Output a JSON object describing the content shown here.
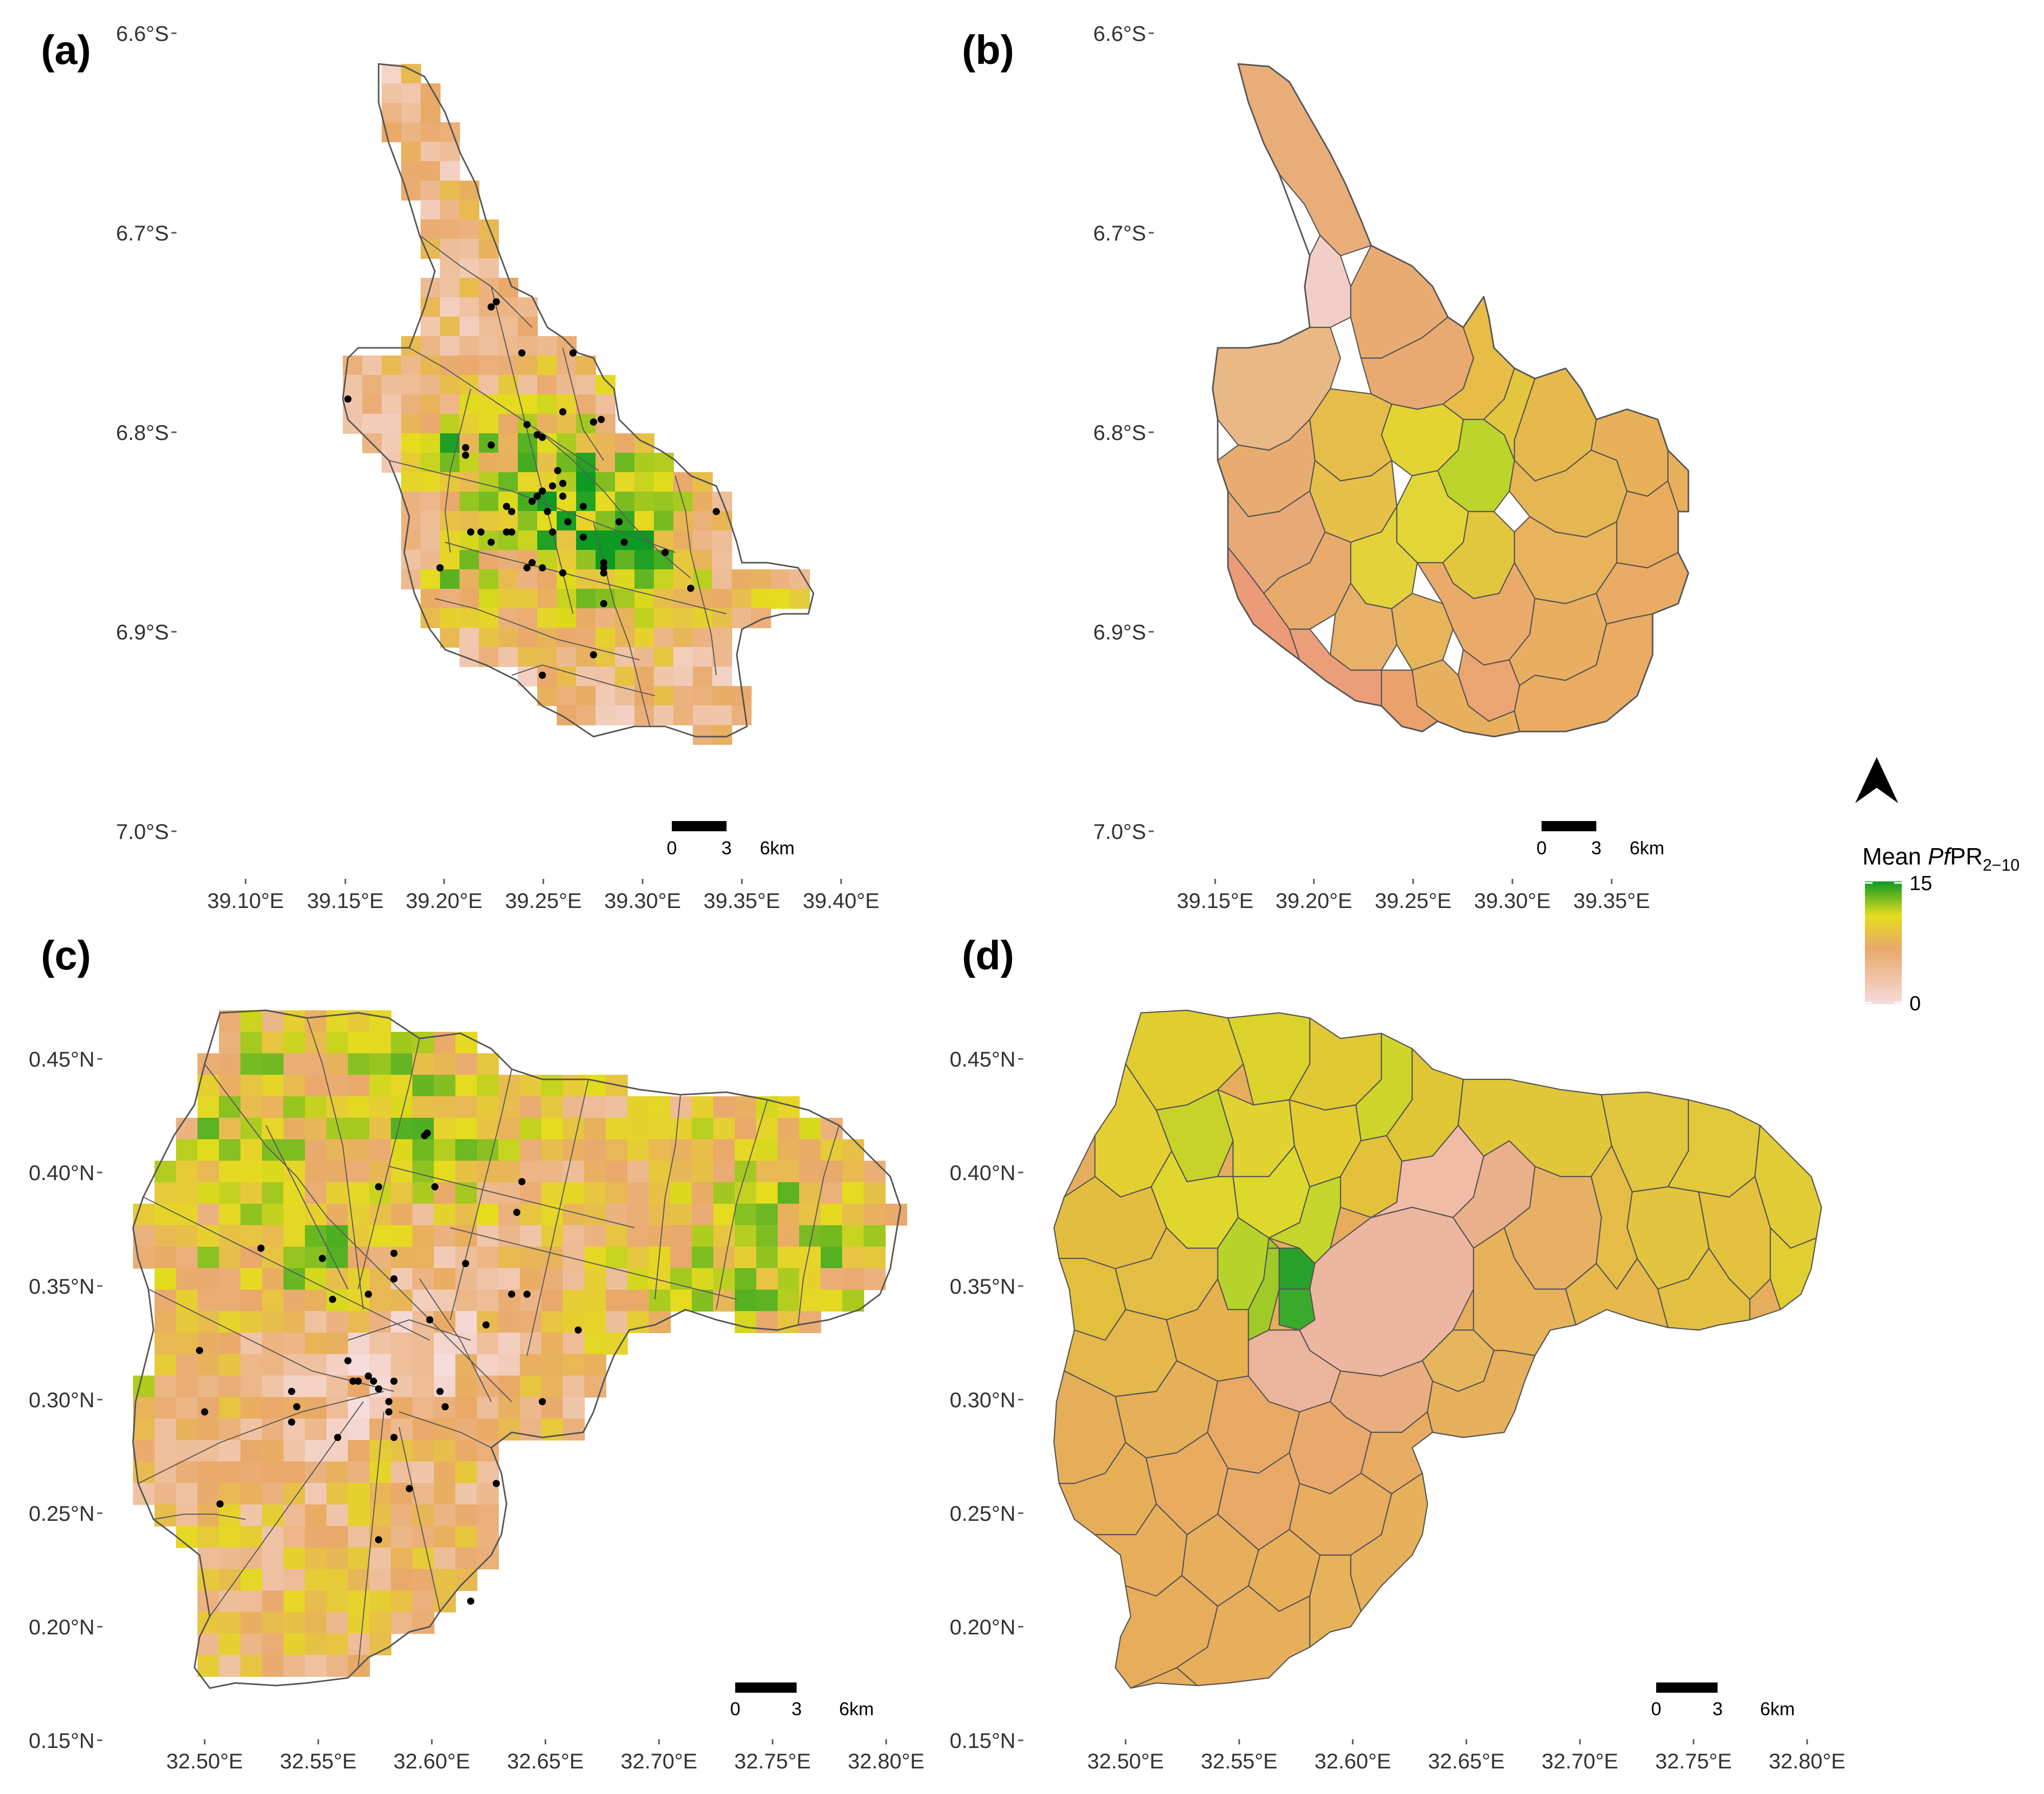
{
  "panels": [
    {
      "label": "(a)",
      "kind": "pixel",
      "lat_ticks": [
        "6.6°S",
        "6.7°S",
        "6.8°S",
        "6.9°S",
        "7.0°S"
      ],
      "lon_ticks": [
        "39.10°E",
        "39.15°E",
        "39.20°E",
        "39.25°E",
        "39.30°E",
        "39.35°E",
        "39.40°E"
      ],
      "scale": {
        "zero": "0",
        "mid": "3",
        "end": "6km"
      }
    },
    {
      "label": "(b)",
      "kind": "district",
      "lat_ticks": [
        "6.6°S",
        "6.7°S",
        "6.8°S",
        "6.9°S",
        "7.0°S"
      ],
      "lon_ticks": [
        "39.15°E",
        "39.20°E",
        "39.25°E",
        "39.30°E",
        "39.35°E"
      ],
      "scale": {
        "zero": "0",
        "mid": "3",
        "end": "6km"
      }
    },
    {
      "label": "(c)",
      "kind": "pixel",
      "lat_ticks": [
        "0.45°N",
        "0.40°N",
        "0.35°N",
        "0.30°N",
        "0.25°N",
        "0.20°N",
        "0.15°N"
      ],
      "lon_ticks": [
        "32.50°E",
        "32.55°E",
        "32.60°E",
        "32.65°E",
        "32.70°E",
        "32.75°E",
        "32.80°E"
      ],
      "scale": {
        "zero": "0",
        "mid": "3",
        "end": "6km"
      }
    },
    {
      "label": "(d)",
      "kind": "district",
      "lat_ticks": [
        "0.45°N",
        "0.40°N",
        "0.35°N",
        "0.30°N",
        "0.25°N",
        "0.20°N",
        "0.15°N"
      ],
      "lon_ticks": [
        "32.50°E",
        "32.55°E",
        "32.60°E",
        "32.65°E",
        "32.70°E",
        "32.75°E",
        "32.80°E"
      ],
      "scale": {
        "zero": "0",
        "mid": "3",
        "end": "6km"
      }
    }
  ],
  "legend": {
    "title_prefix": "Mean ",
    "title_italic": "Pf",
    "title_main": "PR",
    "title_subscript": "2−10",
    "max_label": "15",
    "min_label": "0",
    "colors": [
      "#f6dcdc",
      "#e9a96a",
      "#e5dc1e",
      "#0d9b24"
    ]
  },
  "north_arrow_icon": "north-arrow-icon"
}
